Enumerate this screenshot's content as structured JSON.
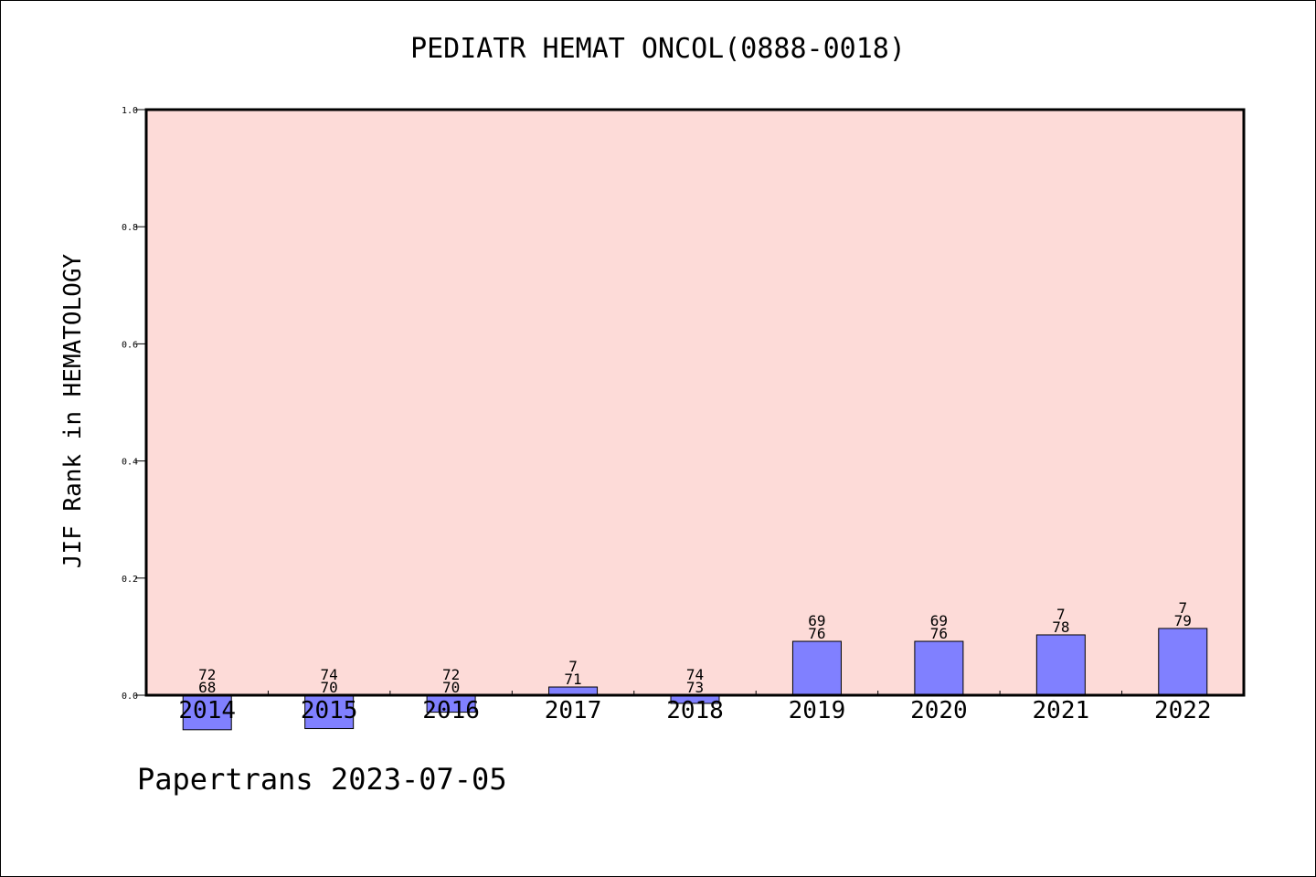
{
  "chart_data": {
    "type": "bar",
    "title": "PEDIATR HEMAT ONCOL(0888-0018)",
    "xlabel": "",
    "ylabel": "JIF Rank in HEMATOLOGY",
    "ylim": [
      0,
      1.0
    ],
    "yticks": [
      "0.0",
      "0.2",
      "0.4",
      "0.6",
      "0.8",
      "1.0"
    ],
    "categories": [
      "2014",
      "2015",
      "2016",
      "2017",
      "2018",
      "2019",
      "2020",
      "2021",
      "2022"
    ],
    "values": [
      -0.059,
      -0.057,
      -0.029,
      0.014,
      -0.014,
      0.092,
      0.092,
      0.103,
      0.114
    ],
    "label_top": [
      "72",
      "74",
      "72",
      "7",
      "74",
      "69",
      "69",
      "7",
      "7"
    ],
    "label_bottom": [
      "68",
      "70",
      "70",
      "71",
      "73",
      "76",
      "76",
      "78",
      "79"
    ],
    "grid": false,
    "colors": {
      "plot_bg": "#fddbd8",
      "bar": "#8080ff",
      "bar_edge": "#000000"
    }
  },
  "footer": "Papertrans 2023-07-05"
}
